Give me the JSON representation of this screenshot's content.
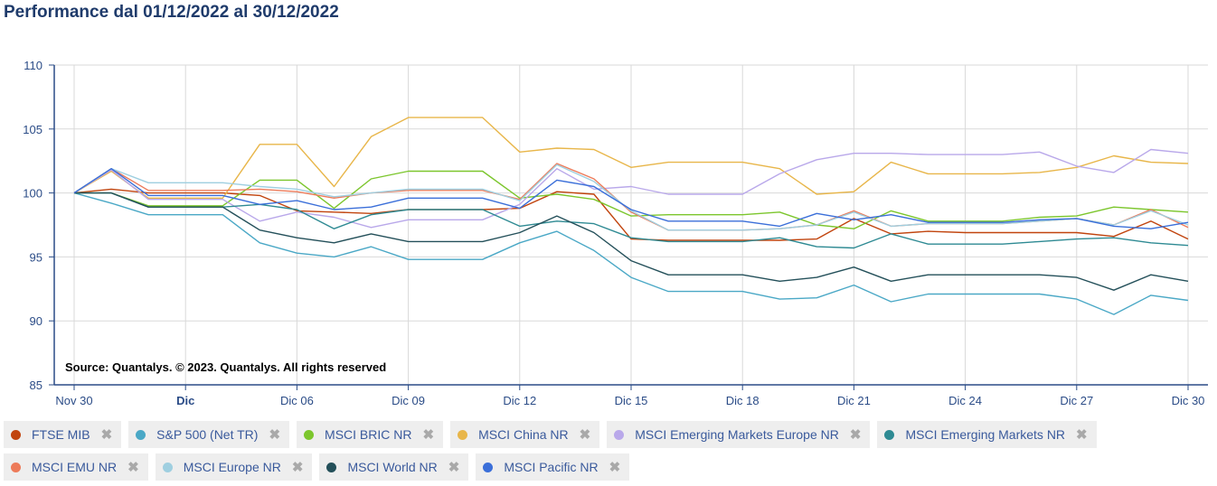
{
  "page": {
    "title": "Performance dal 01/12/2022 al 30/12/2022",
    "source": "Source: Quantalys. © 2023. Quantalys. All rights reserved",
    "remove_glyph": "✖"
  },
  "chart_data": {
    "type": "line",
    "title": "Performance dal 01/12/2022 al 30/12/2022",
    "ylim": [
      85,
      110
    ],
    "yticks": [
      85,
      90,
      95,
      100,
      105,
      110
    ],
    "xlim": [
      0,
      30
    ],
    "xticks": [
      {
        "x": 0,
        "label": "Nov 30",
        "bold": false
      },
      {
        "x": 3,
        "label": "Dic",
        "bold": true
      },
      {
        "x": 6,
        "label": "Dic 06",
        "bold": false
      },
      {
        "x": 9,
        "label": "Dic 09",
        "bold": false
      },
      {
        "x": 12,
        "label": "Dic 12",
        "bold": false
      },
      {
        "x": 15,
        "label": "Dic 15",
        "bold": false
      },
      {
        "x": 18,
        "label": "Dic 18",
        "bold": false
      },
      {
        "x": 21,
        "label": "Dic 21",
        "bold": false
      },
      {
        "x": 24,
        "label": "Dic 24",
        "bold": false
      },
      {
        "x": 27,
        "label": "Dic 27",
        "bold": false
      },
      {
        "x": 30,
        "label": "Dic 30",
        "bold": false
      }
    ],
    "grid": true,
    "legend_position": "bottom",
    "x": [
      0,
      1,
      2,
      3,
      4,
      5,
      6,
      7,
      8,
      9,
      10,
      11,
      12,
      13,
      14,
      15,
      16,
      17,
      18,
      19,
      20,
      21,
      22,
      23,
      24,
      25,
      26,
      27,
      28,
      29,
      30
    ],
    "series": [
      {
        "name": "FTSE MIB",
        "color": "#c1440e",
        "values": [
          100,
          100.3,
          100,
          100,
          100,
          99.8,
          98.6,
          98.5,
          98.4,
          98.7,
          98.7,
          98.7,
          98.8,
          100.1,
          99.9,
          96.4,
          96.3,
          96.3,
          96.3,
          96.3,
          96.4,
          98,
          96.8,
          97,
          96.9,
          96.9,
          96.9,
          96.9,
          96.6,
          97.8,
          96.4
        ]
      },
      {
        "name": "S&P 500 (Net TR)",
        "color": "#4aa8c6",
        "values": [
          100,
          99.2,
          98.3,
          98.3,
          98.3,
          96.1,
          95.3,
          95,
          95.8,
          94.8,
          94.8,
          94.8,
          96.1,
          97,
          95.5,
          93.4,
          92.3,
          92.3,
          92.3,
          91.7,
          91.8,
          92.8,
          91.5,
          92.1,
          92.1,
          92.1,
          92.1,
          91.7,
          90.5,
          92,
          91.6
        ]
      },
      {
        "name": "MSCI BRIC NR",
        "color": "#7cc62d",
        "values": [
          100,
          100,
          99,
          99,
          99,
          101,
          101,
          98.8,
          101.1,
          101.7,
          101.7,
          101.7,
          99.6,
          99.9,
          99.5,
          98.2,
          98.3,
          98.3,
          98.3,
          98.5,
          97.5,
          97.2,
          98.6,
          97.8,
          97.8,
          97.8,
          98.1,
          98.2,
          98.9,
          98.7,
          98.5
        ]
      },
      {
        "name": "MSCI China NR",
        "color": "#e8b64a",
        "values": [
          100,
          101.7,
          99.6,
          99.6,
          99.6,
          103.8,
          103.8,
          100.5,
          104.4,
          105.9,
          105.9,
          105.9,
          103.2,
          103.5,
          103.4,
          102,
          102.4,
          102.4,
          102.4,
          101.9,
          99.9,
          100.1,
          102.4,
          101.5,
          101.5,
          101.5,
          101.6,
          102,
          102.9,
          102.4,
          102.3
        ]
      },
      {
        "name": "MSCI Emerging Markets Europe NR",
        "color": "#b9a8ea",
        "values": [
          100,
          101.8,
          99.5,
          99.5,
          99.5,
          97.8,
          98.5,
          98.1,
          97.3,
          97.9,
          97.9,
          97.9,
          99.1,
          101.9,
          100.3,
          100.5,
          99.9,
          99.9,
          99.9,
          101.5,
          102.6,
          103.1,
          103.1,
          103,
          103,
          103,
          103.2,
          102.1,
          101.6,
          103.4,
          103.1
        ]
      },
      {
        "name": "MSCI Emerging Markets NR",
        "color": "#2e8a93",
        "values": [
          100,
          100,
          98.9,
          98.9,
          98.9,
          99.1,
          98.7,
          97.2,
          98.3,
          98.7,
          98.7,
          98.7,
          97.4,
          97.8,
          97.6,
          96.5,
          96.2,
          96.2,
          96.2,
          96.5,
          95.8,
          95.7,
          96.8,
          96,
          96,
          96,
          96.2,
          96.4,
          96.5,
          96.1,
          95.9
        ]
      },
      {
        "name": "MSCI EMU NR",
        "color": "#ed7b5a",
        "values": [
          100,
          101.9,
          100.2,
          100.2,
          100.2,
          100.3,
          100.1,
          99.6,
          100,
          100.2,
          100.2,
          100.2,
          99.5,
          102.3,
          101.1,
          98.5,
          97.1,
          97.1,
          97.1,
          97.2,
          97.5,
          98.6,
          97.4,
          97.6,
          97.6,
          97.6,
          97.8,
          98,
          97.5,
          98.7,
          97.3
        ]
      },
      {
        "name": "MSCI Europe NR",
        "color": "#9fcfe0",
        "values": [
          100,
          101.9,
          100.8,
          100.8,
          100.8,
          100.5,
          100.3,
          99.7,
          100,
          100.3,
          100.3,
          100.3,
          99.4,
          102.2,
          100.9,
          98.6,
          97.1,
          97.1,
          97.1,
          97.2,
          97.5,
          98.5,
          97.4,
          97.6,
          97.6,
          97.6,
          97.8,
          98,
          97.5,
          98.6,
          97.5
        ]
      },
      {
        "name": "MSCI World NR",
        "color": "#24505a",
        "values": [
          100,
          100,
          98.9,
          98.9,
          98.9,
          97.1,
          96.5,
          96.1,
          96.8,
          96.2,
          96.2,
          96.2,
          96.9,
          98.2,
          96.9,
          94.7,
          93.6,
          93.6,
          93.6,
          93.1,
          93.4,
          94.2,
          93.1,
          93.6,
          93.6,
          93.6,
          93.6,
          93.4,
          92.4,
          93.6,
          93.1
        ]
      },
      {
        "name": "MSCI Pacific NR",
        "color": "#3b6fd9",
        "values": [
          100,
          101.9,
          99.8,
          99.8,
          99.8,
          99.1,
          99.4,
          98.7,
          98.9,
          99.6,
          99.6,
          99.6,
          98.8,
          101,
          100.5,
          98.7,
          97.8,
          97.8,
          97.8,
          97.4,
          98.4,
          97.9,
          98.3,
          97.7,
          97.7,
          97.7,
          97.9,
          98,
          97.4,
          97.2,
          97.7
        ]
      }
    ]
  }
}
